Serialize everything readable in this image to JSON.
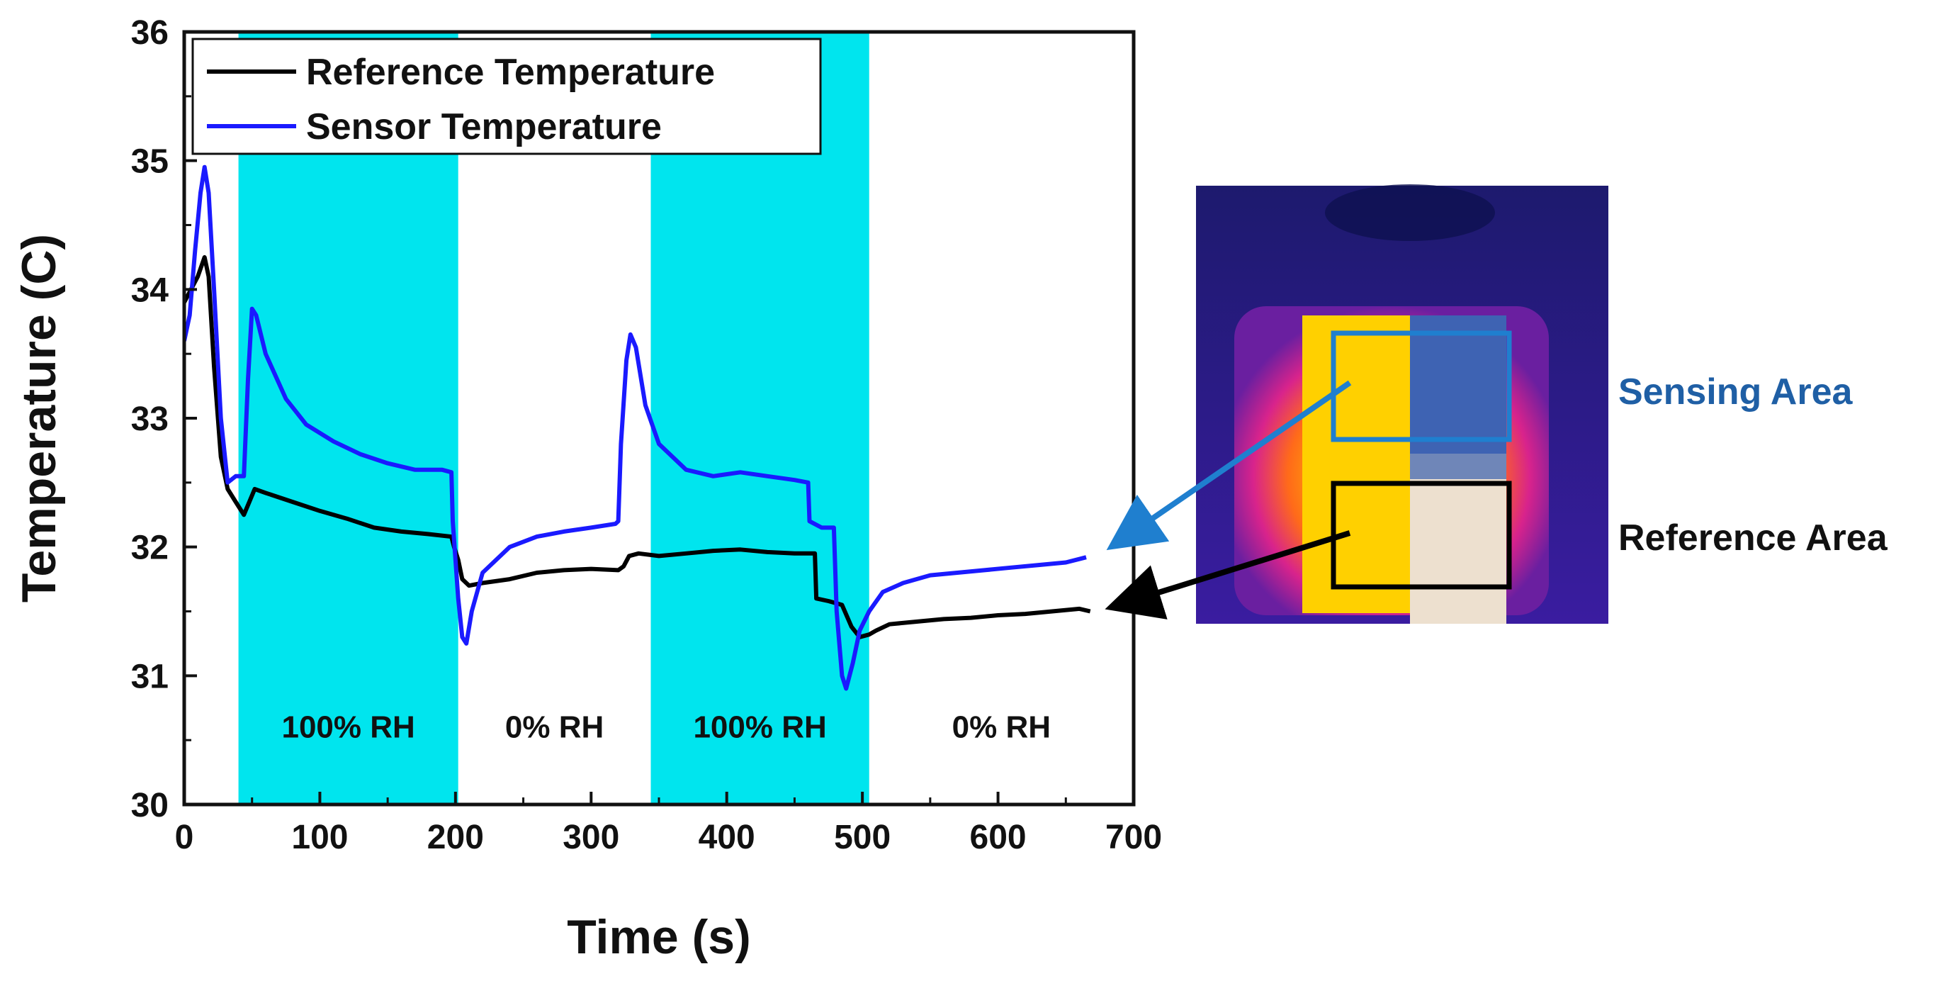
{
  "chart_data": {
    "type": "line",
    "title": "",
    "xlabel": "Time (s)",
    "ylabel": "Temperature (C)",
    "xlim": [
      0,
      700
    ],
    "ylim": [
      30,
      36
    ],
    "xticks": [
      0,
      100,
      200,
      300,
      400,
      500,
      600,
      700
    ],
    "yticks": [
      30,
      31,
      32,
      33,
      34,
      35,
      36
    ],
    "grid": false,
    "legend_position": "top-left",
    "bands": [
      {
        "label": "100% RH",
        "x_start": 40,
        "x_end": 202,
        "color": "#00e5ee"
      },
      {
        "label": "0% RH",
        "x_start": 202,
        "x_end": 344,
        "color": "#ffffff"
      },
      {
        "label": "100% RH",
        "x_start": 344,
        "x_end": 505,
        "color": "#00e5ee"
      },
      {
        "label": "0% RH",
        "x_start": 505,
        "x_end": 700,
        "color": "#ffffff"
      }
    ],
    "series": [
      {
        "name": "Reference Temperature",
        "color": "#000000",
        "points": [
          [
            0,
            33.9
          ],
          [
            5,
            34.0
          ],
          [
            10,
            34.1
          ],
          [
            15,
            34.25
          ],
          [
            18,
            34.1
          ],
          [
            22,
            33.4
          ],
          [
            27,
            32.7
          ],
          [
            32,
            32.45
          ],
          [
            38,
            32.35
          ],
          [
            44,
            32.25
          ],
          [
            48,
            32.35
          ],
          [
            52,
            32.45
          ],
          [
            60,
            32.42
          ],
          [
            80,
            32.35
          ],
          [
            100,
            32.28
          ],
          [
            120,
            32.22
          ],
          [
            140,
            32.15
          ],
          [
            160,
            32.12
          ],
          [
            180,
            32.1
          ],
          [
            197,
            32.08
          ],
          [
            199,
            32.0
          ],
          [
            202,
            31.9
          ],
          [
            205,
            31.75
          ],
          [
            210,
            31.7
          ],
          [
            220,
            31.72
          ],
          [
            240,
            31.75
          ],
          [
            260,
            31.8
          ],
          [
            280,
            31.82
          ],
          [
            300,
            31.83
          ],
          [
            320,
            31.82
          ],
          [
            324,
            31.85
          ],
          [
            328,
            31.93
          ],
          [
            335,
            31.95
          ],
          [
            350,
            31.93
          ],
          [
            370,
            31.95
          ],
          [
            390,
            31.97
          ],
          [
            410,
            31.98
          ],
          [
            430,
            31.96
          ],
          [
            450,
            31.95
          ],
          [
            465,
            31.95
          ],
          [
            466,
            31.6
          ],
          [
            475,
            31.58
          ],
          [
            485,
            31.55
          ],
          [
            492,
            31.38
          ],
          [
            498,
            31.3
          ],
          [
            505,
            31.32
          ],
          [
            510,
            31.35
          ],
          [
            520,
            31.4
          ],
          [
            540,
            31.42
          ],
          [
            560,
            31.44
          ],
          [
            580,
            31.45
          ],
          [
            600,
            31.47
          ],
          [
            620,
            31.48
          ],
          [
            640,
            31.5
          ],
          [
            660,
            31.52
          ],
          [
            668,
            31.5
          ]
        ]
      },
      {
        "name": "Sensor Temperature",
        "color": "#1a1aff",
        "points": [
          [
            0,
            33.6
          ],
          [
            4,
            33.8
          ],
          [
            8,
            34.3
          ],
          [
            12,
            34.75
          ],
          [
            15,
            34.95
          ],
          [
            18,
            34.75
          ],
          [
            22,
            34.0
          ],
          [
            27,
            33.0
          ],
          [
            32,
            32.5
          ],
          [
            38,
            32.55
          ],
          [
            44,
            32.55
          ],
          [
            47,
            33.3
          ],
          [
            50,
            33.85
          ],
          [
            53,
            33.8
          ],
          [
            60,
            33.5
          ],
          [
            75,
            33.15
          ],
          [
            90,
            32.95
          ],
          [
            110,
            32.82
          ],
          [
            130,
            32.72
          ],
          [
            150,
            32.65
          ],
          [
            170,
            32.6
          ],
          [
            190,
            32.6
          ],
          [
            197,
            32.58
          ],
          [
            198,
            32.2
          ],
          [
            202,
            31.6
          ],
          [
            205,
            31.3
          ],
          [
            208,
            31.25
          ],
          [
            212,
            31.5
          ],
          [
            220,
            31.8
          ],
          [
            240,
            32.0
          ],
          [
            260,
            32.08
          ],
          [
            280,
            32.12
          ],
          [
            300,
            32.15
          ],
          [
            318,
            32.18
          ],
          [
            320,
            32.2
          ],
          [
            322,
            32.8
          ],
          [
            326,
            33.45
          ],
          [
            329,
            33.65
          ],
          [
            333,
            33.55
          ],
          [
            340,
            33.1
          ],
          [
            350,
            32.8
          ],
          [
            370,
            32.6
          ],
          [
            390,
            32.55
          ],
          [
            410,
            32.58
          ],
          [
            430,
            32.55
          ],
          [
            450,
            32.52
          ],
          [
            460,
            32.5
          ],
          [
            461,
            32.2
          ],
          [
            470,
            32.15
          ],
          [
            479,
            32.15
          ],
          [
            481,
            31.5
          ],
          [
            485,
            31.0
          ],
          [
            488,
            30.9
          ],
          [
            493,
            31.1
          ],
          [
            498,
            31.35
          ],
          [
            505,
            31.5
          ],
          [
            515,
            31.65
          ],
          [
            530,
            31.72
          ],
          [
            550,
            31.78
          ],
          [
            570,
            31.8
          ],
          [
            590,
            31.82
          ],
          [
            610,
            31.84
          ],
          [
            630,
            31.86
          ],
          [
            650,
            31.88
          ],
          [
            665,
            31.92
          ]
        ]
      }
    ]
  },
  "thermal_panel": {
    "sensing_label": "Sensing Area",
    "sensing_color": "#1f5fa5",
    "reference_label": "Reference Area",
    "reference_color": "#111111",
    "sensing_box_color": "#1f7fcf",
    "reference_box_color": "#000000"
  }
}
